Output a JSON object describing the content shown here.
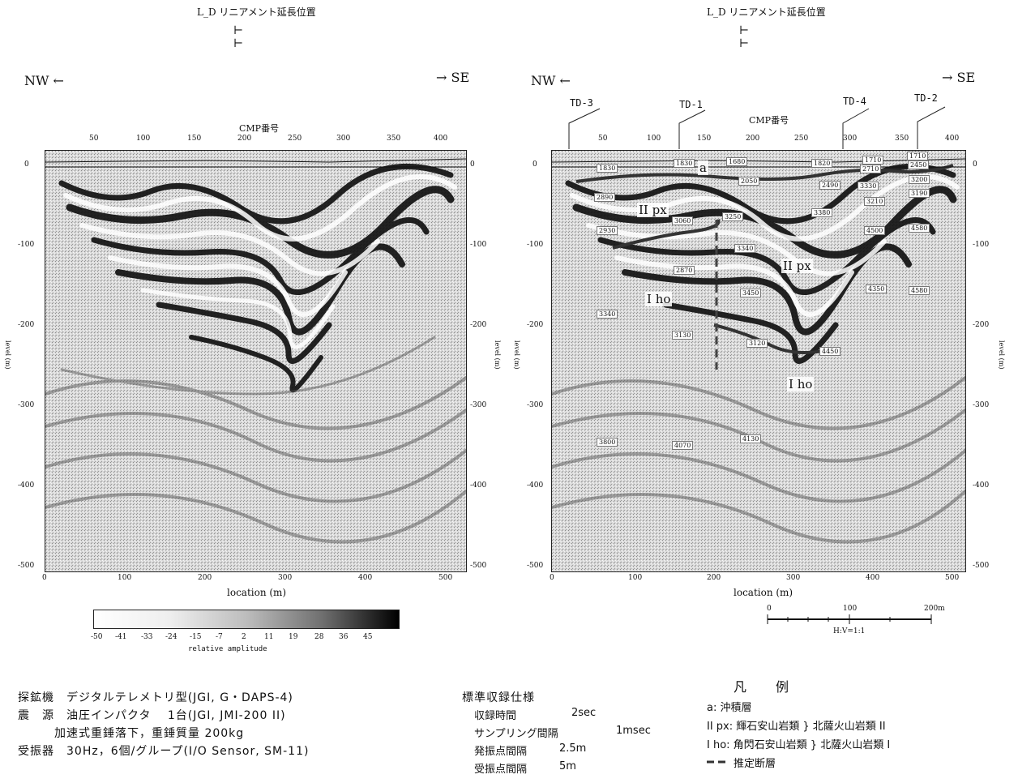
{
  "left": {
    "lineament_title": "L_D リニアメント延長位置",
    "nw": "NW ←",
    "se": "→ SE",
    "cmp_title": "CMP番号",
    "cmp_ticks": [
      "50",
      "100",
      "150",
      "200",
      "250",
      "300",
      "350",
      "400"
    ],
    "y_ticks": [
      "0",
      "-100",
      "-200",
      "-300",
      "-400",
      "-500"
    ],
    "y_ticks_right": [
      "0",
      "-100",
      "-200",
      "-300",
      "-400",
      "-500"
    ],
    "y_label": "level (m)",
    "x_ticks": [
      "0",
      "100",
      "200",
      "300",
      "400",
      "500"
    ],
    "x_label": "location (m)"
  },
  "right": {
    "lineament_title": "L_D リニアメント延長位置",
    "nw": "NW ←",
    "se": "→ SE",
    "cmp_title": "CMP番号",
    "td_labels": [
      "TD-3",
      "TD-1",
      "TD-4",
      "TD-2"
    ],
    "cmp_ticks": [
      "50",
      "100",
      "150",
      "200",
      "250",
      "300",
      "350",
      "400"
    ],
    "y_ticks": [
      "0",
      "-100",
      "-200",
      "-300",
      "-400",
      "-500"
    ],
    "y_label": "level (m)",
    "x_ticks": [
      "0",
      "100",
      "200",
      "300",
      "400",
      "500"
    ],
    "x_label": "location (m)",
    "unit_labels": [
      "a",
      "II px",
      "II px",
      "I ho",
      "I ho"
    ],
    "velocity_labels": [
      "1830",
      "1680",
      "1820",
      "1710",
      "1710",
      "1830",
      "2450",
      "2050",
      "2710",
      "2490",
      "2890",
      "3330",
      "3210",
      "3250",
      "3200",
      "3190",
      "2930",
      "3380",
      "3060",
      "3340",
      "4500",
      "4580",
      "2870",
      "4350",
      "4580",
      "3340",
      "3130",
      "3450",
      "3120",
      "4450",
      "3800",
      "4070",
      "4130"
    ],
    "scale_ticks": [
      "0",
      "100",
      "200m"
    ],
    "scale_ratio": "H:V=1:1"
  },
  "colorbar": {
    "ticks": [
      "-50",
      "-41",
      "-33",
      "-24",
      "-15",
      "-7",
      "2",
      "11",
      "19",
      "28",
      "36",
      "45"
    ],
    "label": "relative amplitude"
  },
  "specs_left": [
    "探鉱機　デジタルテレメトリ型(JGI, G・DAPS-4)",
    "震　源　油圧インパクタ　 1台(JGI, JMI-200 II)",
    "　　　加速式重錘落下，重錘質量 200kg",
    "受振器　30Hz，6個/グループ(I/O Sensor, SM-11)"
  ],
  "specs_mid": {
    "title": "標準収録仕様",
    "rows": [
      [
        "収録時間",
        "2sec"
      ],
      [
        "サンプリング間隔",
        "1msec"
      ],
      [
        "発振点間隔",
        "2.5m"
      ],
      [
        "受振点間隔",
        "5m"
      ]
    ]
  },
  "legend": {
    "title": "凡　例",
    "items": [
      "a: 沖積層",
      "II px: 輝石安山岩類 } 北薩火山岩類 II",
      "I ho: 角閃石安山岩類 } 北薩火山岩類 I",
      "推定断層"
    ]
  }
}
